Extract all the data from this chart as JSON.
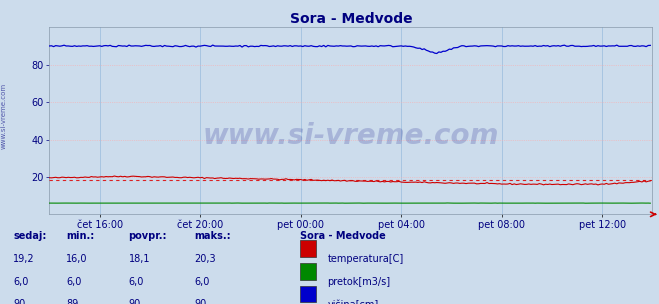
{
  "title": "Sora - Medvode",
  "title_color": "#000080",
  "bg_color": "#ccdcec",
  "plot_bg_color": "#ccdcec",
  "grid_color_h": "#ffaaaa",
  "grid_color_v": "#99bbdd",
  "x_labels": [
    "čet 16:00",
    "čet 20:00",
    "pet 00:00",
    "pet 04:00",
    "pet 08:00",
    "pet 12:00"
  ],
  "x_label_color": "#000080",
  "y_ticks": [
    20,
    40,
    60,
    80
  ],
  "ylim": [
    0,
    100
  ],
  "xlim": [
    0,
    288
  ],
  "watermark": "www.si-vreme.com",
  "watermark_color": "#000080",
  "watermark_alpha": 0.18,
  "sidebar_text": "www.si-vreme.com",
  "sidebar_color": "#000080",
  "temp_color": "#cc0000",
  "temp_avg_color": "#dd0000",
  "pretok_color": "#008800",
  "visina_color": "#0000cc",
  "temp_avg_value": 18.1,
  "pretok_value": 6.0,
  "visina_value": 90,
  "n_points": 288,
  "legend_title": "Sora - Medvode",
  "legend_title_color": "#000080",
  "legend_items": [
    {
      "label": "temperatura[C]",
      "color": "#cc0000"
    },
    {
      "label": "pretok[m3/s]",
      "color": "#008800"
    },
    {
      "label": "višina[cm]",
      "color": "#0000cc"
    }
  ],
  "table_headers": [
    "sedaj:",
    "min.:",
    "povpr.:",
    "maks.:"
  ],
  "table_data": [
    [
      "19,2",
      "16,0",
      "18,1",
      "20,3"
    ],
    [
      "6,0",
      "6,0",
      "6,0",
      "6,0"
    ],
    [
      "90",
      "89",
      "90",
      "90"
    ]
  ],
  "table_color": "#000080",
  "arrow_color": "#cc0000",
  "x_tick_positions": [
    24,
    72,
    120,
    168,
    216,
    264
  ]
}
